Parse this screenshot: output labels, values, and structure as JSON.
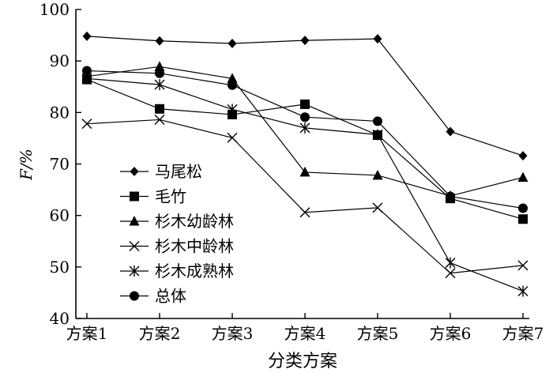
{
  "chart_data": {
    "type": "line",
    "title": "",
    "xlabel": "分类方案",
    "ylabel": "F/%",
    "categories": [
      "方案1",
      "方案2",
      "方案3",
      "方案4",
      "方案5",
      "方案6",
      "方案7"
    ],
    "ylim": [
      40,
      100
    ],
    "yticks": [
      40,
      50,
      60,
      70,
      80,
      90,
      100
    ],
    "grid": false,
    "legend_position": "bottom-left",
    "series": [
      {
        "name": "马尾松",
        "marker": "diamond",
        "values": [
          94.8,
          93.9,
          93.4,
          94.0,
          94.3,
          76.3,
          71.6
        ]
      },
      {
        "name": "毛竹",
        "marker": "square",
        "values": [
          86.4,
          80.7,
          79.6,
          81.6,
          75.6,
          63.3,
          59.3
        ]
      },
      {
        "name": "杉木幼龄林",
        "marker": "triangle",
        "values": [
          87.0,
          88.9,
          86.6,
          68.4,
          67.8,
          63.8,
          67.4
        ]
      },
      {
        "name": "杉木中龄林",
        "marker": "x",
        "values": [
          77.8,
          78.6,
          75.1,
          60.6,
          61.5,
          48.8,
          50.3
        ]
      },
      {
        "name": "杉木成熟林",
        "marker": "asterisk",
        "values": [
          86.6,
          85.4,
          80.6,
          77.0,
          75.7,
          50.8,
          45.3
        ]
      },
      {
        "name": "总体",
        "marker": "circle",
        "values": [
          88.1,
          87.6,
          85.3,
          79.1,
          78.3,
          63.7,
          61.4
        ]
      }
    ]
  }
}
